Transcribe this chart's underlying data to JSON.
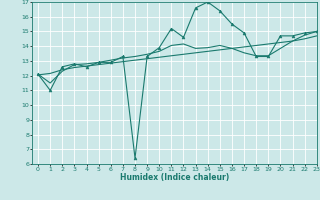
{
  "title": "",
  "xlabel": "Humidex (Indice chaleur)",
  "x": [
    0,
    1,
    2,
    3,
    4,
    5,
    6,
    7,
    8,
    9,
    10,
    11,
    12,
    13,
    14,
    15,
    16,
    17,
    18,
    19,
    20,
    21,
    22,
    23
  ],
  "y_line1": [
    12.1,
    11.0,
    12.6,
    12.8,
    12.6,
    12.9,
    12.9,
    13.3,
    6.4,
    13.3,
    13.9,
    15.2,
    14.6,
    16.6,
    17.0,
    16.4,
    15.5,
    14.9,
    13.3,
    13.3,
    14.7,
    14.7,
    14.9,
    15.0
  ],
  "y_line2": [
    12.05,
    12.15,
    12.4,
    12.55,
    12.65,
    12.75,
    12.85,
    12.95,
    13.05,
    13.15,
    13.25,
    13.35,
    13.45,
    13.55,
    13.65,
    13.75,
    13.85,
    13.95,
    14.05,
    14.15,
    14.25,
    14.35,
    14.5,
    14.7
  ],
  "y_line3": [
    12.1,
    11.5,
    12.3,
    12.75,
    12.8,
    12.9,
    13.05,
    13.2,
    13.3,
    13.45,
    13.65,
    14.05,
    14.15,
    13.85,
    13.9,
    14.05,
    13.85,
    13.55,
    13.35,
    13.35,
    13.85,
    14.35,
    14.75,
    15.0
  ],
  "line_color": "#1a7a6e",
  "bg_color": "#cce8e8",
  "grid_color": "#ffffff",
  "ylim": [
    6,
    17
  ],
  "xlim": [
    -0.5,
    23
  ],
  "yticks": [
    6,
    7,
    8,
    9,
    10,
    11,
    12,
    13,
    14,
    15,
    16,
    17
  ],
  "xticks": [
    0,
    1,
    2,
    3,
    4,
    5,
    6,
    7,
    8,
    9,
    10,
    11,
    12,
    13,
    14,
    15,
    16,
    17,
    18,
    19,
    20,
    21,
    22,
    23
  ]
}
